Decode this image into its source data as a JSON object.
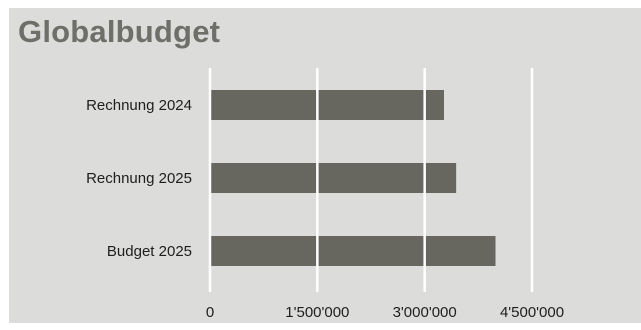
{
  "chart_data": {
    "type": "bar",
    "orientation": "horizontal",
    "title": "Globalbudget",
    "categories": [
      "Rechnung 2024",
      "Rechnung 2025",
      "Budget 2025"
    ],
    "values": [
      3270000,
      3440000,
      3990000
    ],
    "xlim": [
      0,
      4500000
    ],
    "xticks": [
      {
        "value": 0,
        "label": "0"
      },
      {
        "value": 1500000,
        "label": "1'500'000"
      },
      {
        "value": 3000000,
        "label": "3'000'000"
      },
      {
        "value": 4500000,
        "label": "4'500'000"
      }
    ],
    "grid": true,
    "legend": "none"
  },
  "colors": {
    "bar": "#67665f",
    "grid": "#ffffff",
    "background": "#dcdcda",
    "title": "#6f6f6a"
  }
}
